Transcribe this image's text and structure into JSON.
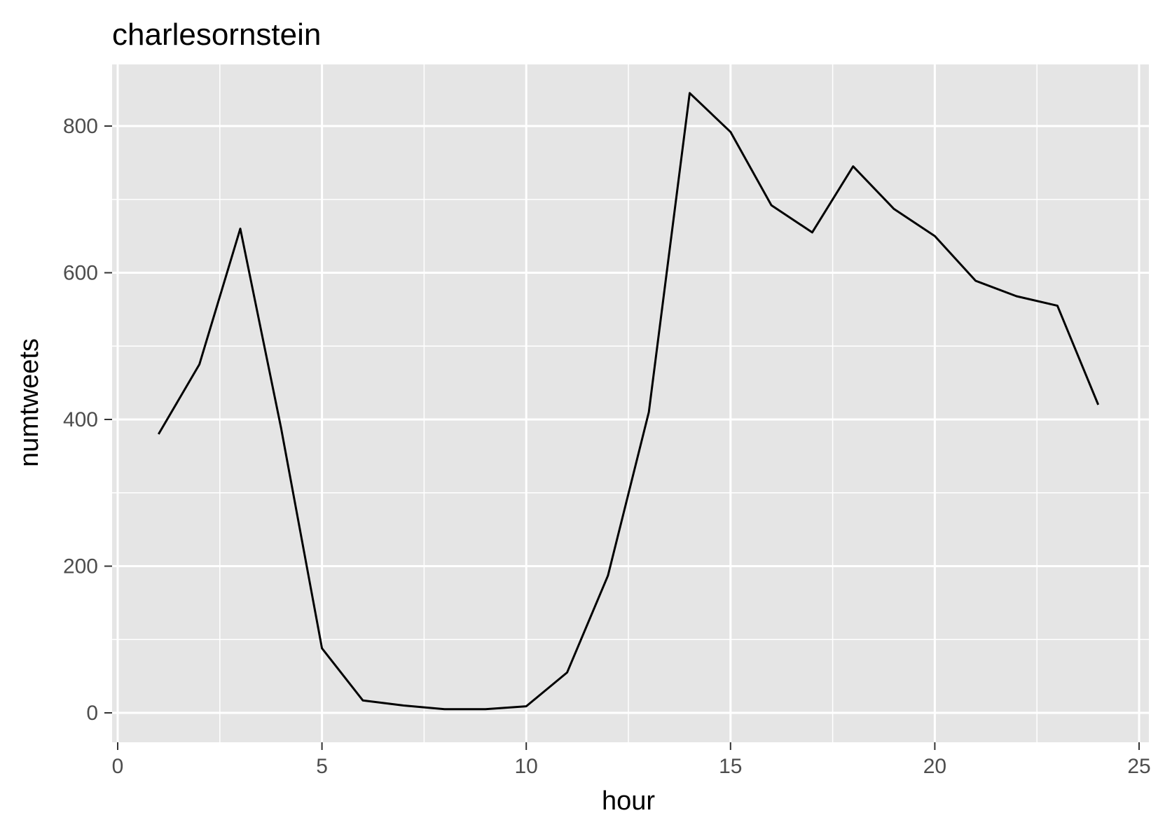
{
  "chart_data": {
    "type": "line",
    "title": "charlesornstein",
    "xlabel": "hour",
    "ylabel": "numtweets",
    "xlim": [
      0,
      25
    ],
    "ylim": [
      0,
      850
    ],
    "x_ticks": [
      0,
      5,
      10,
      15,
      20,
      25
    ],
    "y_ticks": [
      0,
      200,
      400,
      600,
      800
    ],
    "grid": true,
    "colors": {
      "panel_background": "#e5e5e5",
      "grid": "#ffffff",
      "line": "#000000",
      "tick_label": "#4d4d4d"
    },
    "series": [
      {
        "x": [
          1,
          2,
          3,
          4,
          5,
          6,
          7,
          8,
          9,
          10,
          11,
          12,
          13,
          14,
          15,
          16,
          17,
          18,
          19,
          20,
          21,
          22,
          23,
          24
        ],
        "values": [
          380,
          475,
          660,
          388,
          88,
          17,
          10,
          5,
          5,
          9,
          55,
          187,
          410,
          845,
          792,
          692,
          655,
          745,
          687,
          650,
          589,
          568,
          555,
          420
        ]
      }
    ]
  }
}
